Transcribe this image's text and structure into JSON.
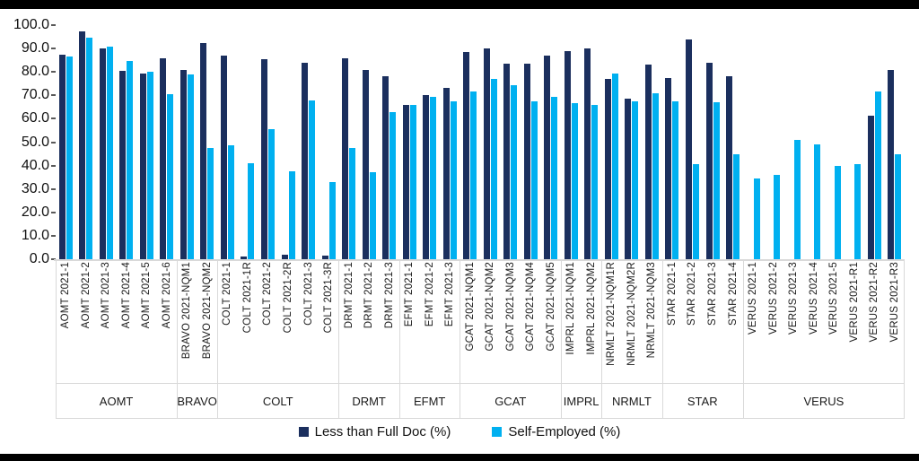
{
  "window": {
    "background": "#ffffff",
    "letterbox_color": "#000000"
  },
  "chart_data": {
    "type": "bar",
    "title": "",
    "xlabel": "",
    "ylabel": "",
    "ylim": [
      0,
      100
    ],
    "ytick_labels": [
      "0.0",
      "10.0",
      "20.0",
      "30.0",
      "40.0",
      "50.0",
      "60.0",
      "70.0",
      "80.0",
      "90.0",
      "100.0"
    ],
    "grid": false,
    "legend_position": "bottom-center",
    "axis_color": "#d9d9d9",
    "tick_color": "#595959",
    "groups": [
      {
        "label": "AOMT",
        "count": 6
      },
      {
        "label": "BRAVO",
        "count": 2
      },
      {
        "label": "COLT",
        "count": 6
      },
      {
        "label": "DRMT",
        "count": 3
      },
      {
        "label": "EFMT",
        "count": 3
      },
      {
        "label": "GCAT",
        "count": 5
      },
      {
        "label": "IMPRL",
        "count": 2
      },
      {
        "label": "NRMLT",
        "count": 3
      },
      {
        "label": "STAR",
        "count": 4
      },
      {
        "label": "VERUS",
        "count": 8
      }
    ],
    "categories": [
      "AOMT 2021-1",
      "AOMT 2021-2",
      "AOMT 2021-3",
      "AOMT 2021-4",
      "AOMT 2021-5",
      "AOMT 2021-6",
      "BRAVO 2021-NQM1",
      "BRAVO 2021-NQM2",
      "COLT 2021-1",
      "COLT 2021-1R",
      "COLT 2021-2",
      "COLT 2021-2R",
      "COLT 2021-3",
      "COLT 2021-3R",
      "DRMT 2021-1",
      "DRMT 2021-2",
      "DRMT 2021-3",
      "EFMT 2021-1",
      "EFMT 2021-2",
      "EFMT 2021-3",
      "GCAT 2021-NQM1",
      "GCAT 2021-NQM2",
      "GCAT 2021-NQM3",
      "GCAT 2021-NQM4",
      "GCAT 2021-NQM5",
      "IMPRL 2021-NQM1",
      "IMPRL 2021-NQM2",
      "NRMLT 2021-NQM1R",
      "NRMLT 2021-NQM2R",
      "NRMLT 2021-NQM3",
      "STAR 2021-1",
      "STAR 2021-2",
      "STAR 2021-3",
      "STAR 2021-4",
      "VERUS 2021-1",
      "VERUS 2021-2",
      "VERUS 2021-3",
      "VERUS 2021-4",
      "VERUS 2021-5",
      "VERUS 2021-R1",
      "VERUS 2021-R2",
      "VERUS 2021-R3"
    ],
    "series": [
      {
        "name": "Less than Full Doc (%)",
        "color": "#1b2f5e",
        "values": [
          87.5,
          97.5,
          90,
          80.5,
          79.5,
          86,
          81,
          92.5,
          87,
          1,
          85.5,
          2,
          84,
          1.5,
          86,
          81,
          78,
          66,
          70,
          73,
          88.5,
          90,
          83.5,
          83.5,
          87,
          89,
          90,
          77,
          68.5,
          83,
          77.5,
          94,
          84,
          78,
          0,
          0,
          0,
          0,
          0,
          0,
          61.5,
          81
        ]
      },
      {
        "name": "Self-Employed (%)",
        "color": "#00b0f0",
        "values": [
          86.5,
          94.5,
          91,
          84.5,
          80,
          70.5,
          79,
          47.5,
          48.5,
          41,
          55.5,
          37.5,
          68,
          33,
          47.5,
          37,
          63,
          66,
          69.5,
          67.5,
          71.5,
          77,
          74.5,
          67.5,
          69.5,
          66.5,
          66,
          79.5,
          67.5,
          71,
          67.5,
          40.5,
          67,
          45,
          34.5,
          36,
          51,
          49,
          40,
          40.5,
          71.5,
          45
        ]
      }
    ]
  }
}
